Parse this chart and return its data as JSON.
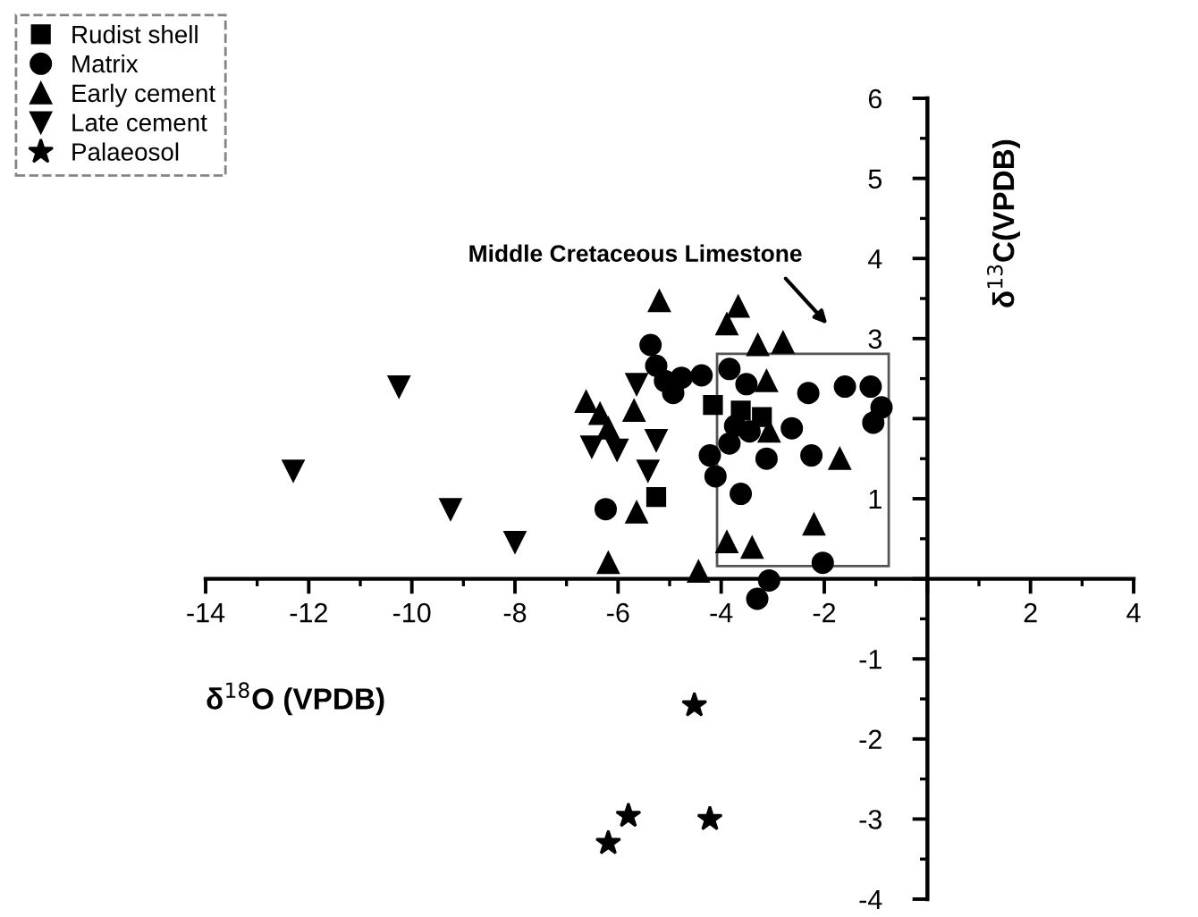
{
  "chart_data": {
    "type": "scatter",
    "xlabel": "δ$^{18}$O (VPDB)",
    "ylabel": "δ$^{13}$C(VPDB)",
    "xlim": [
      -14,
      4
    ],
    "ylim": [
      -4,
      6
    ],
    "xticks": [
      -14,
      -12,
      -10,
      -8,
      -6,
      -4,
      -2,
      {
        "value": 0,
        "label": null
      },
      2,
      4
    ],
    "yticks": [
      -4,
      -3,
      -2,
      -1,
      {
        "value": 0,
        "label": null
      },
      1,
      2,
      3,
      4,
      5,
      6
    ],
    "grid": false,
    "legend": "top left",
    "annotations": [
      "Middle Cretaceous Limestone"
    ],
    "series": [
      {
        "name": "Rudist shell",
        "color": "#000000",
        "marker": "square",
        "x": [
          -4.16,
          -3.62,
          -3.21,
          -5.26
        ],
        "values": [
          2.17,
          2.1,
          2.02,
          1.02
        ]
      },
      {
        "name": "Matrix",
        "color": "#000000",
        "marker": "circle",
        "x": [
          -5.37,
          -5.26,
          -5.09,
          -4.77,
          -4.38,
          -4.93,
          -3.84,
          -3.51,
          -2.31,
          -1.6,
          -1.1,
          -0.89,
          -1.05,
          -3.73,
          -3.45,
          -2.63,
          -3.84,
          -4.22,
          -3.12,
          -2.25,
          -4.11,
          -3.62,
          -6.24,
          -2.03,
          -3.07,
          -3.3
        ],
        "values": [
          2.92,
          2.66,
          2.47,
          2.51,
          2.54,
          2.32,
          2.62,
          2.43,
          2.32,
          2.4,
          2.4,
          2.14,
          1.95,
          1.91,
          1.84,
          1.88,
          1.69,
          1.54,
          1.5,
          1.54,
          1.28,
          1.06,
          0.87,
          0.2,
          -0.02,
          -0.25
        ]
      },
      {
        "name": "Early cement",
        "color": "#000000",
        "marker": "triangle",
        "x": [
          -5.2,
          -3.67,
          -3.89,
          -2.8,
          -3.29,
          -3.12,
          -6.62,
          -6.35,
          -5.69,
          -6.19,
          -3.07,
          -1.7,
          -5.64,
          -2.2,
          -3.89,
          -3.4,
          -6.19,
          -4.44
        ],
        "values": [
          3.47,
          3.4,
          3.18,
          2.95,
          2.92,
          2.47,
          2.21,
          2.06,
          2.1,
          1.88,
          1.84,
          1.5,
          0.83,
          0.68,
          0.46,
          0.39,
          0.2,
          0.09
        ]
      },
      {
        "name": "Late cement",
        "color": "#000000",
        "marker": "triangle_down",
        "x": [
          -10.25,
          -12.3,
          -9.25,
          -8.0,
          -5.64,
          -6.51,
          -6.02,
          -5.26,
          -5.42
        ],
        "values": [
          2.4,
          1.35,
          0.87,
          0.46,
          2.43,
          1.65,
          1.61,
          1.73,
          1.35
        ]
      },
      {
        "name": "Palaeosol",
        "color": "#000000",
        "marker": "star",
        "x": [
          -4.52,
          -5.8,
          -4.22,
          -6.19
        ],
        "values": [
          -1.58,
          -2.96,
          -3.0,
          -3.3
        ]
      }
    ]
  }
}
